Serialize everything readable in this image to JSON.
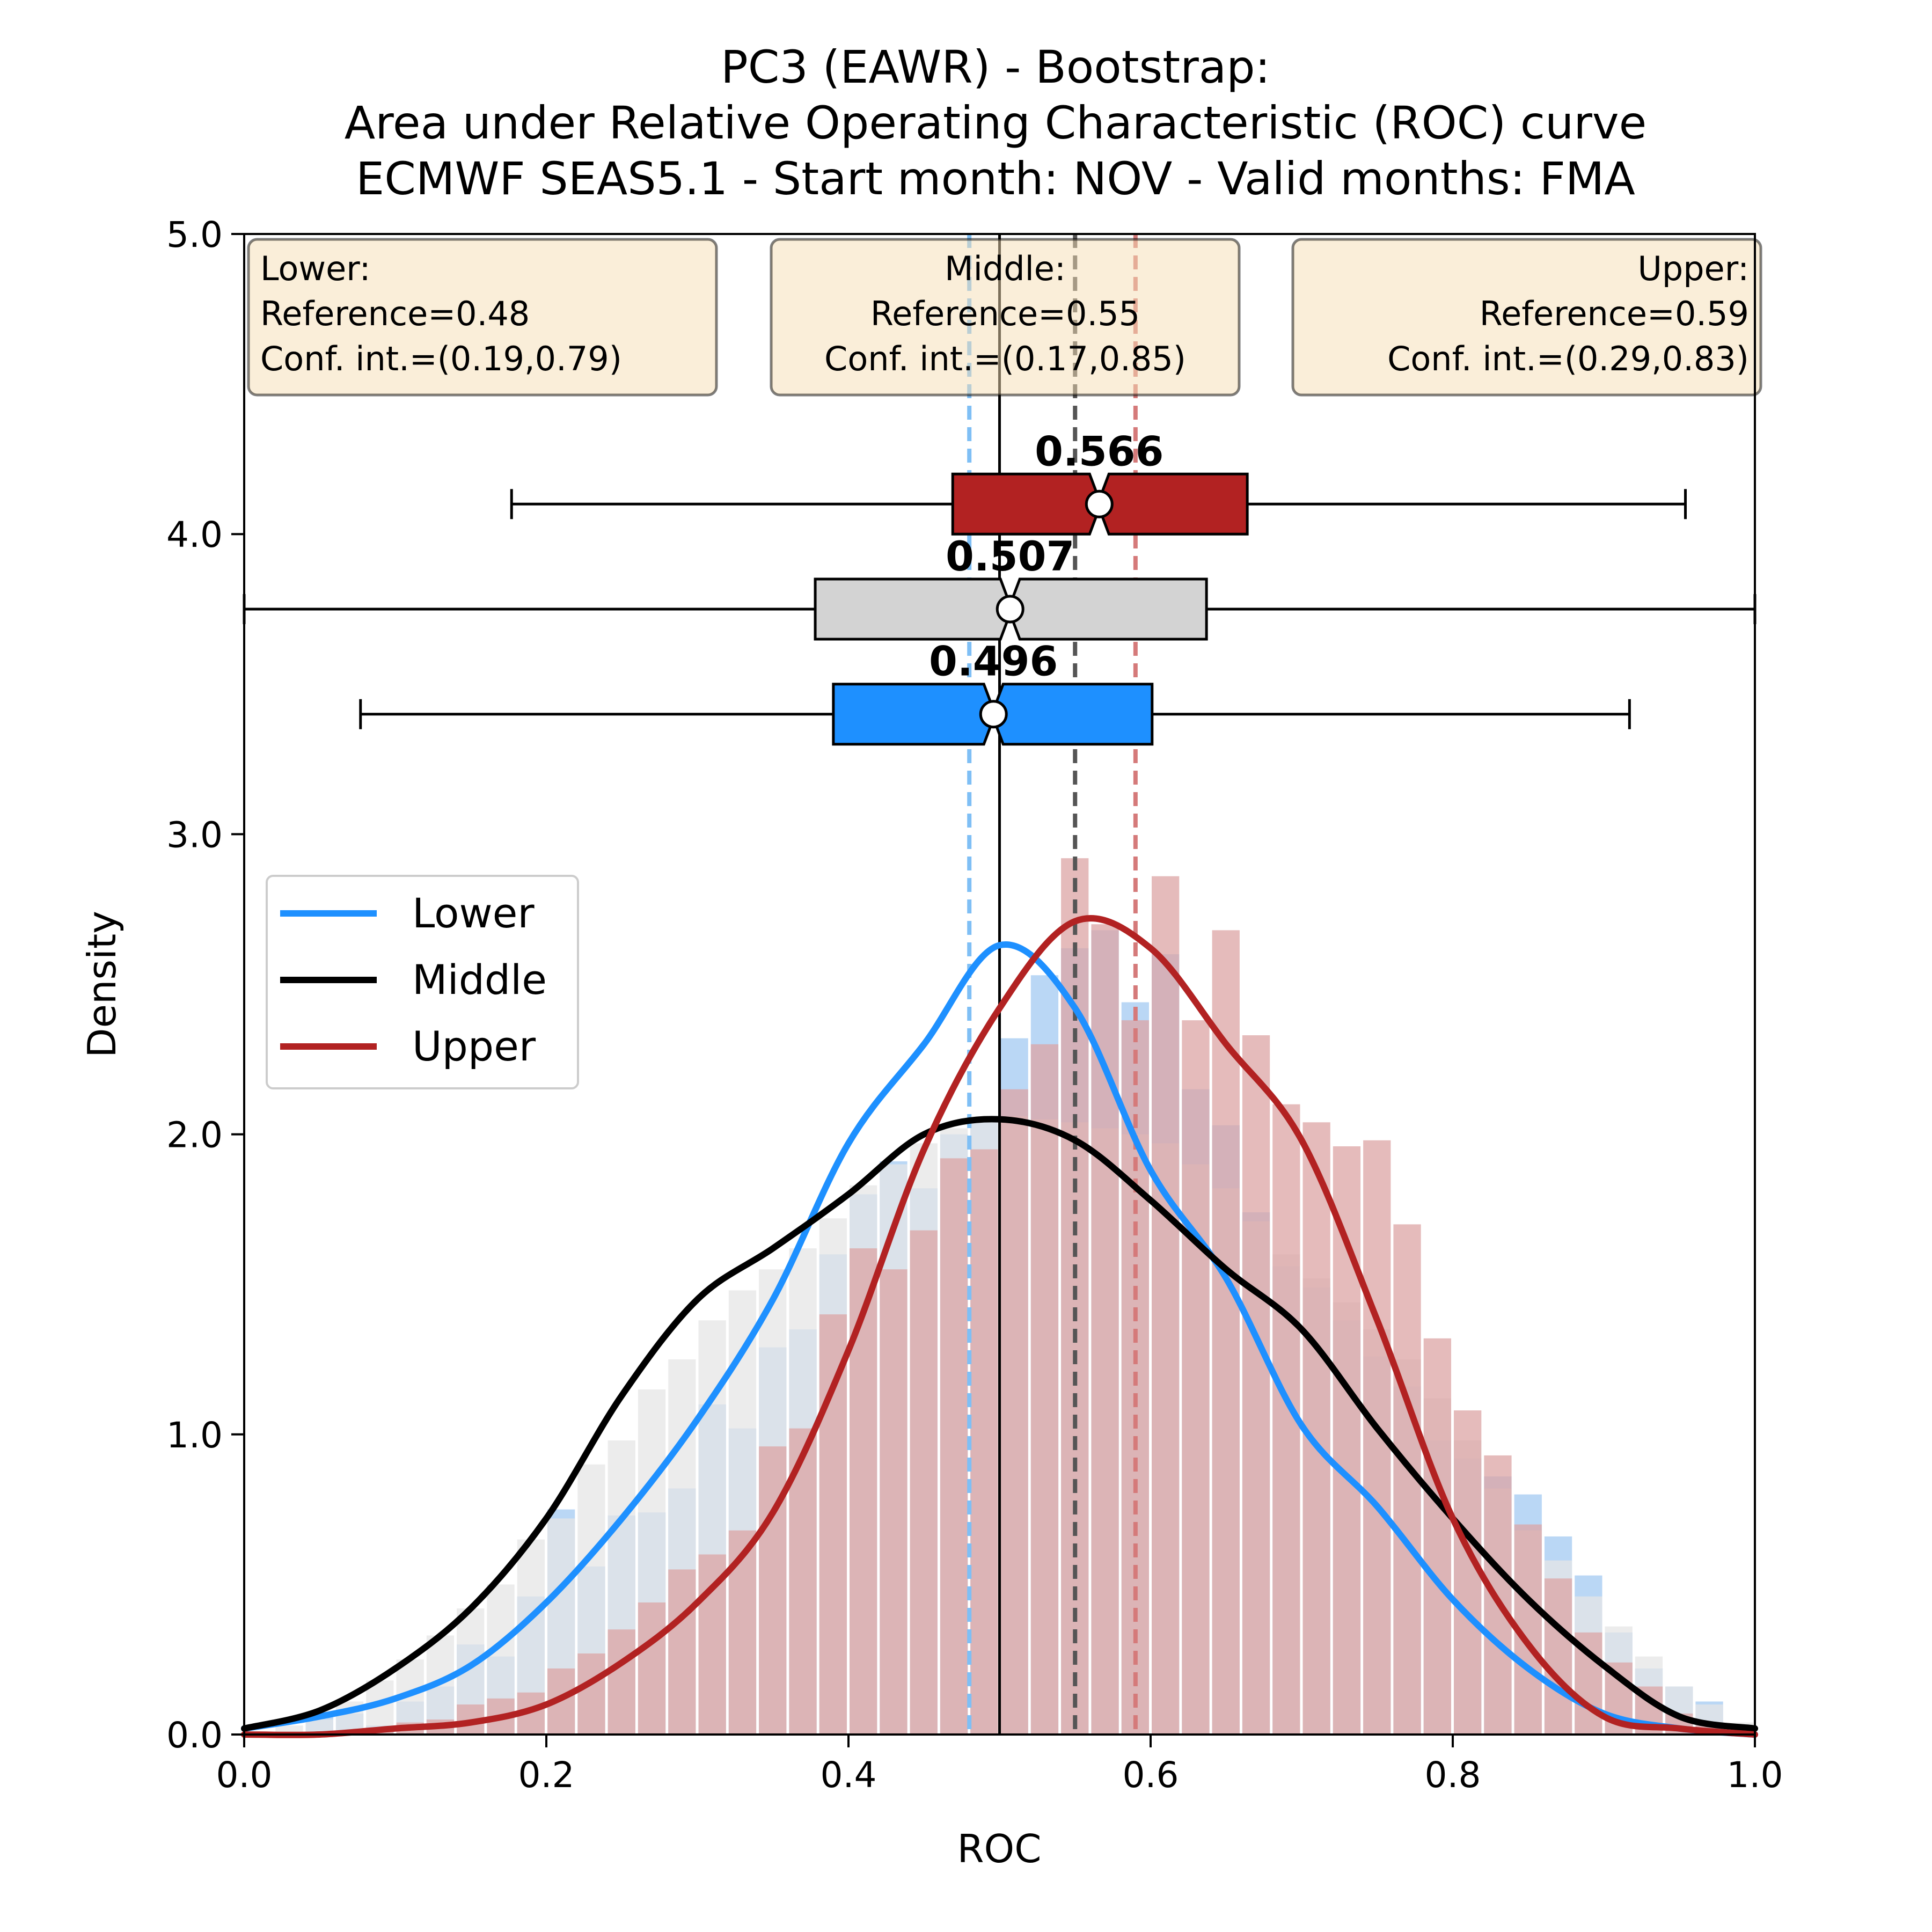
{
  "chart_data": {
    "type": "histogram-kde-boxplot",
    "title": [
      "PC3 (EAWR) - Bootstrap:",
      "Area under Relative Operating Characteristic (ROC) curve",
      "ECMWF SEAS5.1 - Start month: NOV - Valid months: FMA"
    ],
    "xlabel": "ROC",
    "ylabel": "Density",
    "xlim": [
      0.0,
      1.0
    ],
    "ylim": [
      0.0,
      5.0
    ],
    "xticks": [
      "0.0",
      "0.2",
      "0.4",
      "0.6",
      "0.8",
      "1.0"
    ],
    "yticks": [
      "0.0",
      "1.0",
      "2.0",
      "3.0",
      "4.0",
      "5.0"
    ],
    "legend": {
      "position": "center-left",
      "entries": [
        "Lower",
        "Middle",
        "Upper"
      ]
    },
    "vertical_lines": {
      "zero_skill": 0.5
    },
    "series": [
      {
        "name": "Lower",
        "color": "#1e90ff",
        "hist_color": "#a9cdf2",
        "reference": 0.48,
        "conf_int": [
          0.19,
          0.79
        ],
        "info": [
          "Lower:",
          "Reference=0.48",
          "Conf. int.=(0.19,0.79)"
        ],
        "median_label": "0.496",
        "box": {
          "whisker_low": 0.077,
          "q1": 0.39,
          "median": 0.496,
          "mean": 0.496,
          "q3": 0.601,
          "whisker_high": 0.917,
          "y": 3.4
        },
        "hist_heights": [
          0.0,
          0.0,
          0.06,
          0.07,
          0.03,
          0.11,
          0.16,
          0.3,
          0.26,
          0.46,
          0.75,
          0.56,
          0.73,
          0.74,
          0.82,
          1.1,
          1.02,
          1.29,
          1.35,
          1.6,
          1.8,
          1.91,
          1.82,
          2.0,
          2.04,
          2.32,
          2.53,
          2.62,
          2.68,
          2.44,
          2.6,
          2.15,
          2.03,
          1.74,
          1.56,
          1.49,
          1.38,
          1.26,
          1.16,
          0.98,
          0.92,
          0.86,
          0.8,
          0.66,
          0.53,
          0.34,
          0.22,
          0.16,
          0.11,
          0.03
        ],
        "kde": [
          [
            0.0,
            0.02
          ],
          [
            0.05,
            0.06
          ],
          [
            0.1,
            0.12
          ],
          [
            0.15,
            0.23
          ],
          [
            0.2,
            0.44
          ],
          [
            0.25,
            0.72
          ],
          [
            0.3,
            1.05
          ],
          [
            0.35,
            1.45
          ],
          [
            0.4,
            1.97
          ],
          [
            0.45,
            2.3
          ],
          [
            0.5,
            2.63
          ],
          [
            0.55,
            2.42
          ],
          [
            0.6,
            1.88
          ],
          [
            0.65,
            1.52
          ],
          [
            0.7,
            1.03
          ],
          [
            0.75,
            0.76
          ],
          [
            0.8,
            0.45
          ],
          [
            0.85,
            0.22
          ],
          [
            0.9,
            0.07
          ],
          [
            0.95,
            0.02
          ],
          [
            1.0,
            0.0
          ]
        ]
      },
      {
        "name": "Middle",
        "color": "#000000",
        "hist_color": "#e6e6e6",
        "reference": 0.55,
        "conf_int": [
          0.17,
          0.85
        ],
        "info": [
          "Middle:",
          "Reference=0.55",
          "Conf. int.=(0.17,0.85)"
        ],
        "median_label": "0.507",
        "box": {
          "whisker_low": 0.0,
          "q1": 0.378,
          "median": 0.507,
          "mean": 0.507,
          "q3": 0.637,
          "whisker_high": 1.0,
          "y": 3.75
        },
        "hist_heights": [
          0.0,
          0.03,
          0.05,
          0.11,
          0.18,
          0.25,
          0.33,
          0.42,
          0.5,
          0.65,
          0.72,
          0.9,
          0.98,
          1.15,
          1.25,
          1.38,
          1.48,
          1.55,
          1.62,
          1.72,
          1.83,
          1.9,
          1.97,
          2.02,
          2.05,
          2.06,
          2.05,
          2.04,
          2.02,
          2.0,
          1.97,
          1.9,
          1.82,
          1.71,
          1.6,
          1.52,
          1.44,
          1.35,
          1.25,
          1.12,
          0.98,
          0.82,
          0.68,
          0.58,
          0.46,
          0.36,
          0.26,
          0.16,
          0.1,
          0.04
        ],
        "kde": [
          [
            0.0,
            0.02
          ],
          [
            0.05,
            0.08
          ],
          [
            0.1,
            0.22
          ],
          [
            0.15,
            0.42
          ],
          [
            0.2,
            0.72
          ],
          [
            0.25,
            1.13
          ],
          [
            0.3,
            1.45
          ],
          [
            0.35,
            1.62
          ],
          [
            0.4,
            1.8
          ],
          [
            0.45,
            2.0
          ],
          [
            0.5,
            2.05
          ],
          [
            0.55,
            1.98
          ],
          [
            0.6,
            1.78
          ],
          [
            0.65,
            1.55
          ],
          [
            0.7,
            1.35
          ],
          [
            0.75,
            1.02
          ],
          [
            0.8,
            0.72
          ],
          [
            0.85,
            0.45
          ],
          [
            0.9,
            0.23
          ],
          [
            0.95,
            0.06
          ],
          [
            1.0,
            0.02
          ]
        ]
      },
      {
        "name": "Upper",
        "color": "#b22222",
        "hist_color": "#dca4a4",
        "reference": 0.59,
        "conf_int": [
          0.29,
          0.83
        ],
        "info": [
          "Upper:",
          "Reference=0.59",
          "Conf. int.=(0.29,0.83)"
        ],
        "median_label": "0.566",
        "box": {
          "whisker_low": 0.177,
          "q1": 0.469,
          "median": 0.566,
          "mean": 0.566,
          "q3": 0.664,
          "whisker_high": 0.954,
          "y": 4.1
        },
        "hist_heights": [
          0.0,
          0.0,
          0.0,
          0.0,
          0.02,
          0.04,
          0.05,
          0.1,
          0.12,
          0.14,
          0.22,
          0.27,
          0.35,
          0.44,
          0.55,
          0.6,
          0.68,
          0.96,
          1.02,
          1.4,
          1.62,
          1.55,
          1.68,
          1.92,
          1.95,
          2.15,
          2.3,
          2.92,
          2.7,
          2.38,
          2.86,
          2.38,
          2.68,
          2.33,
          2.1,
          2.04,
          1.96,
          1.98,
          1.7,
          1.32,
          1.08,
          0.93,
          0.7,
          0.52,
          0.34,
          0.24,
          0.16,
          0.07,
          0.03,
          0.0
        ],
        "kde": [
          [
            0.0,
            0.0
          ],
          [
            0.05,
            0.0
          ],
          [
            0.1,
            0.02
          ],
          [
            0.15,
            0.04
          ],
          [
            0.2,
            0.1
          ],
          [
            0.25,
            0.24
          ],
          [
            0.3,
            0.44
          ],
          [
            0.35,
            0.74
          ],
          [
            0.4,
            1.28
          ],
          [
            0.45,
            1.95
          ],
          [
            0.5,
            2.42
          ],
          [
            0.55,
            2.71
          ],
          [
            0.6,
            2.62
          ],
          [
            0.65,
            2.3
          ],
          [
            0.7,
            1.98
          ],
          [
            0.75,
            1.38
          ],
          [
            0.8,
            0.72
          ],
          [
            0.85,
            0.3
          ],
          [
            0.9,
            0.06
          ],
          [
            0.95,
            0.02
          ],
          [
            1.0,
            0.0
          ]
        ]
      }
    ]
  }
}
